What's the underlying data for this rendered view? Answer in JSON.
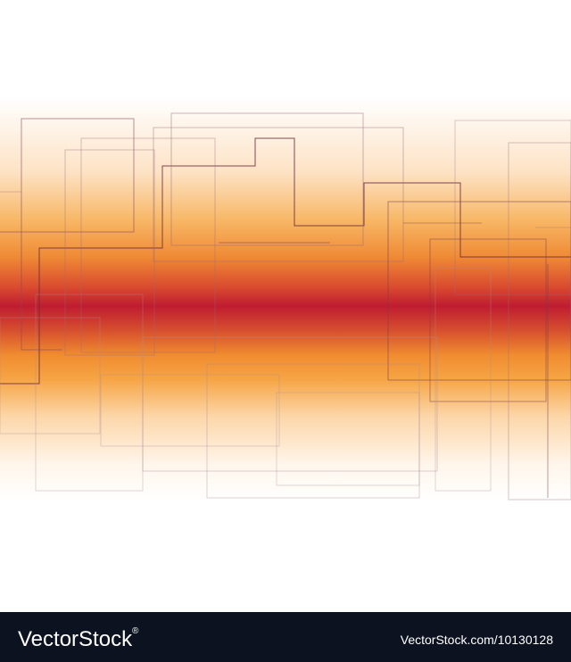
{
  "footer": {
    "logo": "VectorStock",
    "trademark": "®",
    "url": "VectorStock.com/10130128"
  }
}
